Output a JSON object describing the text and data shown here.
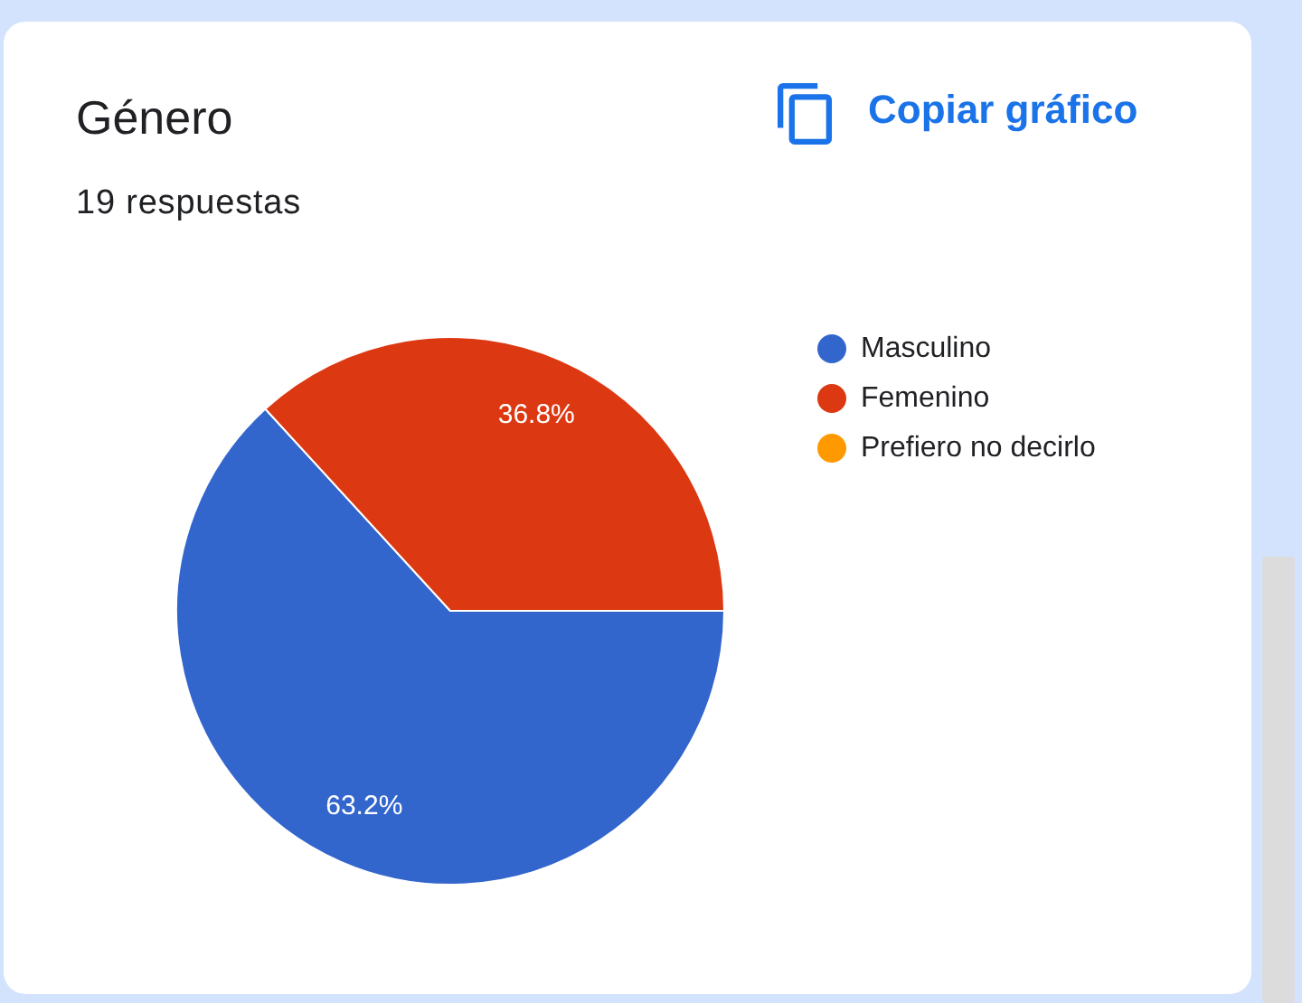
{
  "chart_data": {
    "type": "pie",
    "title": "Género",
    "subtitle": "19 respuestas",
    "categories": [
      "Masculino",
      "Femenino",
      "Prefiero no decirlo"
    ],
    "values": [
      63.2,
      36.8,
      0
    ],
    "colors": [
      "#3366cc",
      "#dc3912",
      "#ff9900"
    ],
    "value_labels": [
      "63.2%",
      "36.8%",
      null
    ],
    "legend": "right",
    "annotations": [
      "Copiar gráfico"
    ]
  }
}
